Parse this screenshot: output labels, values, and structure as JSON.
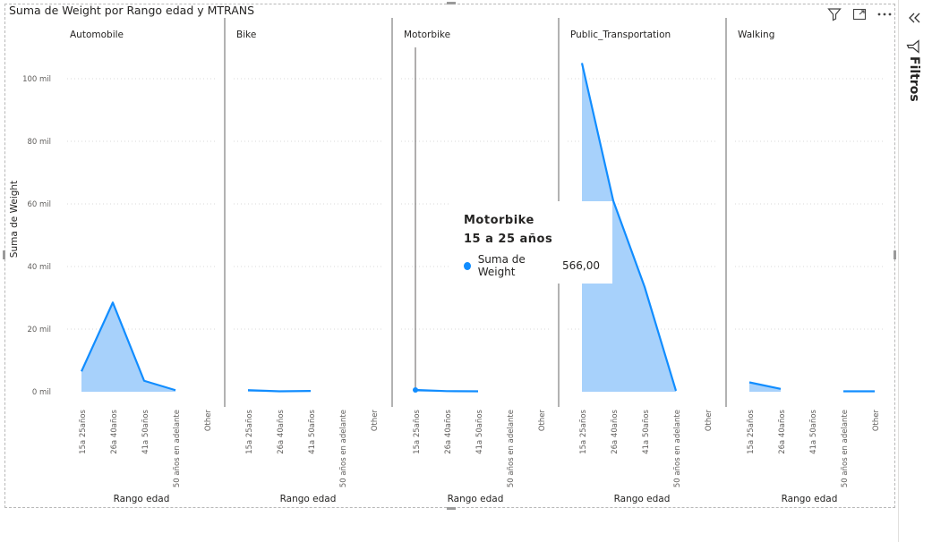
{
  "visual": {
    "title": "Suma de Weight por Rango edad y MTRANS",
    "toolbar": [
      {
        "name": "filter-icon",
        "label": "Filtrar"
      },
      {
        "name": "focus-mode-icon",
        "label": "Modo foco"
      },
      {
        "name": "more-options-icon",
        "label": "Más opciones"
      }
    ]
  },
  "side_pane": {
    "label": "Filtros",
    "collapse_icon": "double-chevron-left-icon",
    "filter_icon": "filter-icon"
  },
  "colors": {
    "line": "#118DFF",
    "area": "#A7D1FB",
    "grid": "#d9d9d9",
    "divider": "#7f7f7f"
  },
  "chart_data": {
    "type": "area",
    "ylabel": "Suma de Weight",
    "xlabel": "Rango edad",
    "ylim": [
      0,
      110000
    ],
    "yticks": [
      0,
      20000,
      40000,
      60000,
      80000,
      100000
    ],
    "ytick_labels": [
      "0 mil",
      "20 mil",
      "40 mil",
      "60 mil",
      "80 mil",
      "100 mil"
    ],
    "grid": true,
    "categories": [
      "15a 25años",
      "26a 40años",
      "41a 50años",
      "50 años en adelante",
      "Other"
    ],
    "panels": [
      {
        "name": "Automobile",
        "values": [
          6500,
          28500,
          3500,
          500,
          null
        ]
      },
      {
        "name": "Bike",
        "values": [
          500,
          150,
          250,
          null,
          null
        ]
      },
      {
        "name": "Motorbike",
        "values": [
          566,
          200,
          150,
          null,
          null
        ]
      },
      {
        "name": "Public_Transportation",
        "values": [
          105000,
          61000,
          33500,
          300,
          null
        ]
      },
      {
        "name": "Walking",
        "values": [
          3000,
          900,
          null,
          150,
          150
        ]
      }
    ]
  },
  "tooltip": {
    "title": "Motorbike",
    "subtitle": "15 a 25 años",
    "measure": "Suma de Weight",
    "value": "566,00"
  }
}
